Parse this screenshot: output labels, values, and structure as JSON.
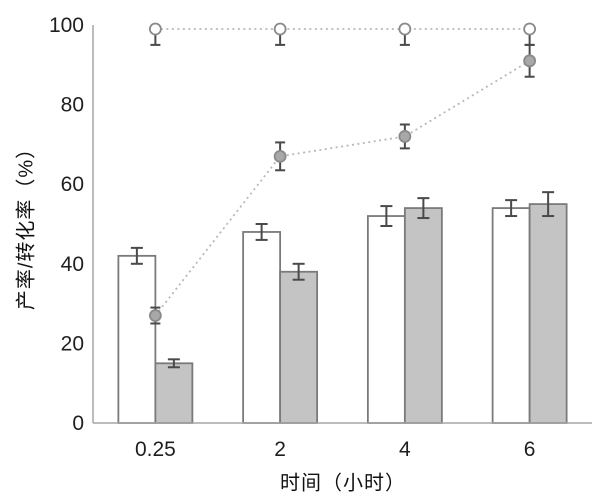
{
  "chart_data": {
    "type": "bar+line",
    "title": "",
    "categories": [
      "0.25",
      "2",
      "4",
      "6"
    ],
    "xlabel": "时间（小时）",
    "ylabel": "产率/转化率（%）",
    "ylim": [
      0,
      100
    ],
    "yticks": [
      0,
      20,
      40,
      60,
      80,
      100
    ],
    "grid": false,
    "legend": "none",
    "colors": {
      "axis": "#a6a6a6",
      "bar_stroke": "#7a7a7a",
      "white_bar_fill": "#ffffff",
      "gray_bar_fill": "#c4c4c4",
      "error_bar": "#4a4a4a",
      "dotted_line": "#b8b8b8",
      "marker_stroke": "#8a8a8a",
      "filled_marker_fill": "#a8a8a8",
      "open_marker_fill": "#ffffff",
      "tick_text": "#1f1f1f"
    },
    "bar_series": [
      {
        "name": "white-bars",
        "style": "white",
        "values": [
          42,
          48,
          52,
          54
        ],
        "errors": [
          2,
          2,
          2.5,
          2
        ]
      },
      {
        "name": "gray-bars",
        "style": "gray",
        "values": [
          15,
          38,
          54,
          55
        ],
        "errors": [
          1,
          2,
          2.5,
          3
        ]
      }
    ],
    "line_series": [
      {
        "name": "open-circle-series",
        "marker": "open-circle",
        "values": [
          99,
          99,
          99,
          99
        ],
        "errors": [
          4,
          4,
          4,
          4
        ],
        "error_direction": "minus"
      },
      {
        "name": "filled-circle-series",
        "marker": "filled-circle",
        "values": [
          27,
          67,
          72,
          91
        ],
        "errors": [
          2,
          3.5,
          3,
          4
        ],
        "error_direction": "both"
      }
    ]
  }
}
